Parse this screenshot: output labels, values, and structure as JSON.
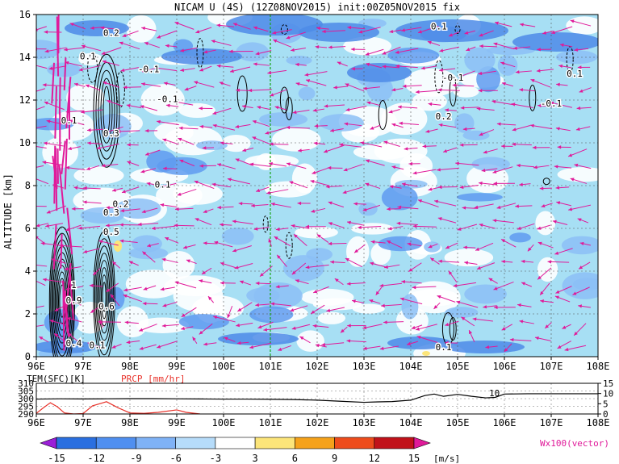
{
  "chart_data": [
    {
      "type": "heatmap",
      "title": "NICAM U (4S) (12Z08NOV2015) init:00Z05NOV2015 fix",
      "ylabel": "ALTITUDE [km]",
      "xlabel": "",
      "x_ticks": [
        "96E",
        "97E",
        "98E",
        "99E",
        "100E",
        "101E",
        "102E",
        "103E",
        "104E",
        "105E",
        "106E",
        "107E",
        "108E"
      ],
      "y_ticks": [
        "0",
        "2",
        "4",
        "6",
        "8",
        "10",
        "12",
        "14",
        "16"
      ],
      "xlim": [
        96,
        108
      ],
      "ylim": [
        0,
        16
      ],
      "grid": true,
      "marker_line_x": 101,
      "contour_labels": [
        {
          "text": "0.2",
          "x": 97.6,
          "y": 15.0
        },
        {
          "text": "0.1",
          "x": 97.1,
          "y": 13.9
        },
        {
          "text": "-0.1",
          "x": 98.4,
          "y": 13.3
        },
        {
          "text": "-0.1",
          "x": 98.8,
          "y": 11.9
        },
        {
          "text": "0.1",
          "x": 96.7,
          "y": 10.9
        },
        {
          "text": "0.3",
          "x": 97.6,
          "y": 10.3
        },
        {
          "text": "0.1",
          "x": 98.7,
          "y": 7.9
        },
        {
          "text": "0.2",
          "x": 97.8,
          "y": 7.0
        },
        {
          "text": "0.3",
          "x": 97.6,
          "y": 6.6
        },
        {
          "text": "0.5",
          "x": 97.6,
          "y": 5.7
        },
        {
          "text": "1",
          "x": 96.8,
          "y": 3.2
        },
        {
          "text": "0.9",
          "x": 96.8,
          "y": 2.5
        },
        {
          "text": "0.6",
          "x": 97.5,
          "y": 2.2
        },
        {
          "text": "0.4",
          "x": 96.8,
          "y": 0.5
        },
        {
          "text": "0.1",
          "x": 97.3,
          "y": 0.4
        },
        {
          "text": "0.1",
          "x": 104.6,
          "y": 15.3
        },
        {
          "text": "-0.1",
          "x": 104.9,
          "y": 12.9
        },
        {
          "text": "0.2",
          "x": 104.7,
          "y": 11.1
        },
        {
          "text": "-0.1",
          "x": 107.0,
          "y": 11.7
        },
        {
          "text": "0.1",
          "x": 107.5,
          "y": 13.1
        },
        {
          "text": "0.1",
          "x": 104.7,
          "y": 0.3
        }
      ],
      "colorbar": {
        "levels": [
          -15,
          -12,
          -9,
          -6,
          -3,
          3,
          6,
          9,
          12,
          15
        ],
        "colors": [
          "#9b1fd8",
          "#2a6fe0",
          "#4f8ff0",
          "#7fb2f6",
          "#b6dcfa",
          "#ffffff",
          "#fce57a",
          "#f5a21b",
          "#ee4c1c",
          "#c1121a",
          "#e01a9a"
        ],
        "unit": "[m/s]",
        "vector_label": "Wx100(vector)"
      }
    },
    {
      "type": "line",
      "title": "",
      "left_label": "TEM(SFC)[K]",
      "right_label": "PRCP [mm/hr]",
      "x_ticks": [
        "96E",
        "97E",
        "98E",
        "99E",
        "100E",
        "101E",
        "102E",
        "103E",
        "104E",
        "105E",
        "106E",
        "107E",
        "108E"
      ],
      "y_ticks_left": [
        "290",
        "295",
        "300",
        "305",
        "310"
      ],
      "y_ticks_right": [
        "0",
        "5",
        "10",
        "15"
      ],
      "xlim": [
        96,
        108
      ],
      "ylim_left": [
        290,
        310
      ],
      "ylim_right": [
        0,
        15
      ],
      "annotation": "10",
      "series": [
        {
          "axis": "left",
          "color": "#000000",
          "x": [
            96.0,
            96.5,
            97.0,
            97.5,
            98.0,
            98.5,
            99.0,
            99.5,
            100.0,
            100.5,
            101.0,
            101.5,
            102.0,
            102.5,
            103.0,
            103.3,
            103.6,
            104.0,
            104.3,
            104.5,
            104.7,
            105.0,
            105.3,
            105.6,
            105.8,
            106.0,
            106.5,
            107.0,
            107.5,
            108.0
          ],
          "values": [
            299.7,
            299.9,
            299.8,
            299.9,
            300.0,
            300.0,
            299.9,
            299.8,
            299.7,
            299.7,
            299.6,
            299.4,
            299.0,
            298.3,
            297.6,
            297.9,
            298.1,
            299.0,
            302.0,
            303.0,
            301.5,
            302.8,
            301.5,
            300.5,
            300.8,
            303.0,
            303.2,
            303.2,
            303.2,
            303.2
          ]
        },
        {
          "axis": "right",
          "color": "#e8322a",
          "x": [
            96.0,
            96.15,
            96.3,
            96.45,
            96.6,
            96.8,
            97.0,
            97.2,
            97.5,
            97.75,
            98.0,
            98.3,
            98.6,
            99.0,
            99.2,
            99.5
          ],
          "values": [
            0.3,
            3.0,
            5.5,
            3.5,
            0.5,
            0.0,
            0.2,
            4.0,
            6.0,
            3.0,
            0.5,
            0.3,
            0.8,
            2.0,
            0.8,
            0.0
          ]
        }
      ]
    }
  ]
}
